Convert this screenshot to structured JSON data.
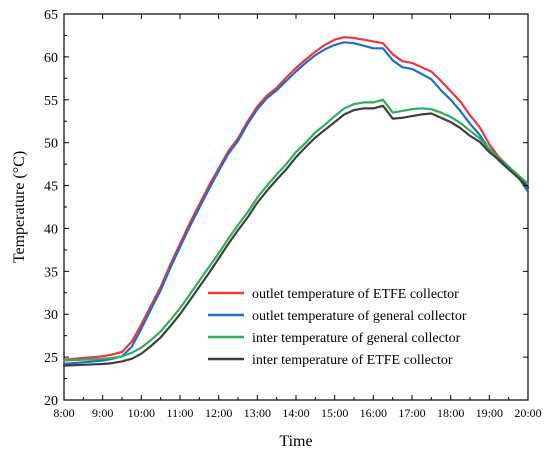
{
  "chart_data": {
    "type": "line",
    "title": "",
    "xlabel": "Time",
    "ylabel": "Temperature (°C)",
    "x_ticks": [
      "8:00",
      "9:00",
      "10:00",
      "11:00",
      "12:00",
      "13:00",
      "14:00",
      "15:00",
      "16:00",
      "17:00",
      "18:00",
      "19:00",
      "20:00"
    ],
    "xlim": [
      8,
      20
    ],
    "ylim": [
      20,
      65
    ],
    "y_ticks": [
      20,
      25,
      30,
      35,
      40,
      45,
      50,
      55,
      60,
      65
    ],
    "grid": false,
    "legend_position": "right-middle",
    "series": [
      {
        "name": "outlet temperature of ETFE collector",
        "color": "#e8373d",
        "x": [
          8.0,
          8.5,
          9.0,
          9.25,
          9.5,
          9.75,
          10.0,
          10.25,
          10.5,
          10.75,
          11.0,
          11.25,
          11.5,
          11.75,
          12.0,
          12.25,
          12.5,
          12.75,
          13.0,
          13.25,
          13.5,
          13.75,
          14.0,
          14.25,
          14.5,
          14.75,
          15.0,
          15.25,
          15.5,
          15.75,
          16.0,
          16.25,
          16.5,
          16.75,
          17.0,
          17.25,
          17.5,
          17.75,
          18.0,
          18.25,
          18.5,
          18.75,
          19.0,
          19.25,
          19.5,
          19.75,
          20.0
        ],
        "values": [
          24.7,
          24.9,
          25.1,
          25.3,
          25.6,
          26.8,
          28.8,
          31.0,
          33.2,
          35.8,
          38.2,
          40.6,
          42.8,
          45.0,
          47.0,
          49.0,
          50.5,
          52.5,
          54.2,
          55.5,
          56.4,
          57.6,
          58.7,
          59.7,
          60.6,
          61.4,
          62.0,
          62.3,
          62.2,
          62.0,
          61.8,
          61.6,
          60.3,
          59.5,
          59.3,
          58.8,
          58.3,
          57.2,
          56.0,
          54.8,
          53.2,
          51.8,
          49.8,
          48.3,
          47.2,
          46.2,
          44.8
        ]
      },
      {
        "name": "outlet temperature of general collector",
        "color": "#1f6fc4",
        "x": [
          8.0,
          8.5,
          9.0,
          9.25,
          9.5,
          9.75,
          10.0,
          10.25,
          10.5,
          10.75,
          11.0,
          11.25,
          11.5,
          11.75,
          12.0,
          12.25,
          12.5,
          12.75,
          13.0,
          13.25,
          13.5,
          13.75,
          14.0,
          14.25,
          14.5,
          14.75,
          15.0,
          15.25,
          15.5,
          15.75,
          16.0,
          16.25,
          16.5,
          16.75,
          17.0,
          17.25,
          17.5,
          17.75,
          18.0,
          18.25,
          18.5,
          18.75,
          19.0,
          19.25,
          19.5,
          19.75,
          20.0
        ],
        "values": [
          24.2,
          24.4,
          24.6,
          24.8,
          25.1,
          26.2,
          28.3,
          30.6,
          32.8,
          35.4,
          37.8,
          40.2,
          42.4,
          44.6,
          46.7,
          48.7,
          50.2,
          52.2,
          53.9,
          55.2,
          56.1,
          57.2,
          58.3,
          59.3,
          60.2,
          60.9,
          61.4,
          61.7,
          61.6,
          61.3,
          61.0,
          61.0,
          59.6,
          58.8,
          58.6,
          58.0,
          57.4,
          56.1,
          55.0,
          53.7,
          52.2,
          50.9,
          49.2,
          47.9,
          46.9,
          46.0,
          44.3
        ]
      },
      {
        "name": "inter temperature of general collector",
        "color": "#2fae5b",
        "x": [
          8.0,
          8.5,
          9.0,
          9.25,
          9.5,
          9.75,
          10.0,
          10.25,
          10.5,
          10.75,
          11.0,
          11.25,
          11.5,
          11.75,
          12.0,
          12.25,
          12.5,
          12.75,
          13.0,
          13.25,
          13.5,
          13.75,
          14.0,
          14.25,
          14.5,
          14.75,
          15.0,
          15.25,
          15.5,
          15.75,
          16.0,
          16.25,
          16.5,
          16.75,
          17.0,
          17.25,
          17.5,
          17.75,
          18.0,
          18.25,
          18.5,
          18.75,
          19.0,
          19.25,
          19.5,
          19.75,
          20.0
        ],
        "values": [
          24.6,
          24.7,
          24.8,
          24.9,
          25.1,
          25.5,
          26.1,
          27.0,
          28.0,
          29.3,
          30.7,
          32.3,
          33.9,
          35.5,
          37.1,
          38.8,
          40.4,
          41.9,
          43.6,
          45.0,
          46.3,
          47.5,
          48.9,
          50.0,
          51.2,
          52.1,
          53.1,
          54.0,
          54.5,
          54.7,
          54.7,
          55.0,
          53.5,
          53.7,
          53.9,
          54.0,
          53.9,
          53.5,
          53.0,
          52.3,
          51.4,
          50.5,
          49.3,
          48.2,
          47.2,
          46.2,
          45.2
        ]
      },
      {
        "name": "inter temperature of ETFE collector",
        "color": "#3f3f3f",
        "x": [
          8.0,
          8.5,
          9.0,
          9.25,
          9.5,
          9.75,
          10.0,
          10.25,
          10.5,
          10.75,
          11.0,
          11.25,
          11.5,
          11.75,
          12.0,
          12.25,
          12.5,
          12.75,
          13.0,
          13.25,
          13.5,
          13.75,
          14.0,
          14.25,
          14.5,
          14.75,
          15.0,
          15.25,
          15.5,
          15.75,
          16.0,
          16.25,
          16.5,
          16.75,
          17.0,
          17.25,
          17.5,
          17.75,
          18.0,
          18.25,
          18.5,
          18.75,
          19.0,
          19.25,
          19.5,
          19.75,
          20.0
        ],
        "values": [
          24.0,
          24.1,
          24.2,
          24.3,
          24.5,
          24.8,
          25.4,
          26.3,
          27.3,
          28.6,
          30.0,
          31.6,
          33.2,
          34.8,
          36.5,
          38.2,
          39.8,
          41.3,
          43.0,
          44.4,
          45.7,
          46.9,
          48.3,
          49.5,
          50.6,
          51.5,
          52.4,
          53.3,
          53.8,
          54.0,
          54.0,
          54.3,
          52.8,
          52.9,
          53.1,
          53.3,
          53.4,
          52.9,
          52.4,
          51.7,
          50.8,
          50.1,
          48.9,
          48.0,
          46.9,
          45.9,
          44.8
        ]
      }
    ]
  }
}
